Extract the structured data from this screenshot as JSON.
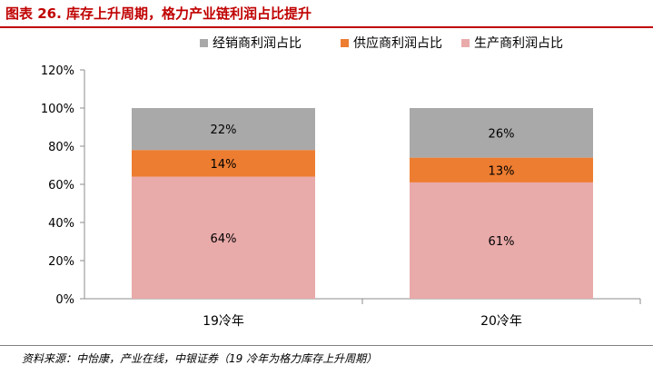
{
  "figure": {
    "title": "图表 26. 库存上升周期，格力产业链利润占比提升",
    "source": "资料来源：中怡康，产业在线，中银证券（19 冷年为格力库存上升周期）"
  },
  "chart_data": {
    "type": "bar",
    "stacked": true,
    "categories": [
      "19冷年",
      "20冷年"
    ],
    "series": [
      {
        "name": "生产商利润占比",
        "color": "#e9aaaa",
        "values": [
          64,
          61
        ],
        "labels": [
          "64%",
          "61%"
        ]
      },
      {
        "name": "供应商利润占比",
        "color": "#ed7d31",
        "values": [
          14,
          13
        ],
        "labels": [
          "14%",
          "13%"
        ]
      },
      {
        "name": "经销商利润占比",
        "color": "#a9a9a9",
        "values": [
          22,
          26
        ],
        "labels": [
          "22%",
          "26%"
        ]
      }
    ],
    "legend_order": [
      2,
      1,
      0
    ],
    "legend_position": "top",
    "ylim": [
      0,
      120
    ],
    "yticks": [
      "0%",
      "20%",
      "40%",
      "60%",
      "80%",
      "100%",
      "120%"
    ],
    "grid": false
  }
}
